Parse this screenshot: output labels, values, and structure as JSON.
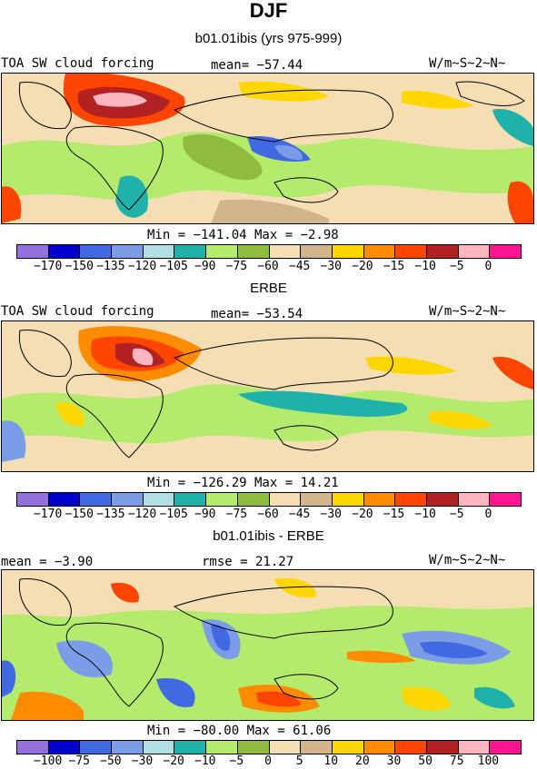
{
  "title": "DJF",
  "panels": [
    {
      "subtitle": "b01.01ibis (yrs 975-999)",
      "left_label": "TOA SW cloud forcing",
      "center_label": "mean= −57.44",
      "right_label": "W/m~S~2~N~",
      "minmax": "Min = −141.04 Max =  −2.98"
    },
    {
      "subtitle": "ERBE",
      "left_label": "TOA SW cloud forcing",
      "center_label": "mean= −53.54",
      "right_label": "W/m~S~2~N~",
      "minmax": "Min = −126.29 Max =  14.21"
    },
    {
      "subtitle": "b01.01ibis - ERBE",
      "left_label": "mean =  −3.90",
      "center_label": "rmse =  21.27",
      "right_label": "W/m~S~2~N~",
      "minmax": "Min = −80.00 Max =  61.06"
    }
  ],
  "colorbar_colors": [
    "#9370db",
    "#0000cd",
    "#4169e1",
    "#7b9de8",
    "#b0e0e6",
    "#20b2aa",
    "#b4eb6c",
    "#8fbc3f",
    "#f5deb3",
    "#d2b48c",
    "#ffd700",
    "#ff8c00",
    "#ff4500",
    "#b22222",
    "#ffb6c1",
    "#ff1493"
  ],
  "colorbar_ticks_abs": [
    "−170",
    "−150",
    "−135",
    "−120",
    "−105",
    "−90",
    "−75",
    "−60",
    "−45",
    "−30",
    "−20",
    "−15",
    "−10",
    "−5",
    "0"
  ],
  "colorbar_ticks_diff": [
    "−100",
    "−75",
    "−50",
    "−30",
    "−20",
    "−10",
    "−5",
    "0",
    "5",
    "10",
    "20",
    "30",
    "50",
    "75",
    "100"
  ]
}
